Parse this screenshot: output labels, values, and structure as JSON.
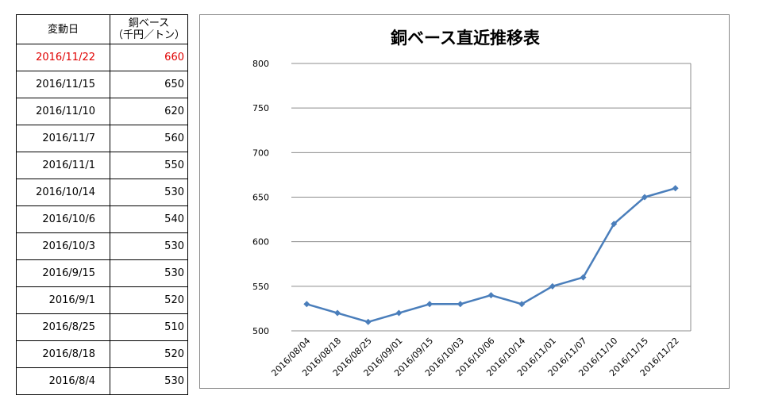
{
  "table": {
    "header_date": "変動日",
    "header_price_line1": "銅ベース",
    "header_price_line2": "（千円／トン）",
    "rows": [
      {
        "date": "2016/11/22",
        "price": "660",
        "highlight": true
      },
      {
        "date": "2016/11/15",
        "price": "650"
      },
      {
        "date": "2016/11/10",
        "price": "620"
      },
      {
        "date": "2016/11/7",
        "price": "560"
      },
      {
        "date": "2016/11/1",
        "price": "550"
      },
      {
        "date": "2016/10/14",
        "price": "530"
      },
      {
        "date": "2016/10/6",
        "price": "540"
      },
      {
        "date": "2016/10/3",
        "price": "530"
      },
      {
        "date": "2016/9/15",
        "price": "530"
      },
      {
        "date": "2016/9/1",
        "price": "520"
      },
      {
        "date": "2016/8/25",
        "price": "510"
      },
      {
        "date": "2016/8/18",
        "price": "520"
      },
      {
        "date": "2016/8/4",
        "price": "530"
      }
    ],
    "highlight_color": "#e00000"
  },
  "chart_data": {
    "type": "line",
    "title": "銅ベース直近推移表",
    "categories": [
      "2016/08/04",
      "2016/08/18",
      "2016/08/25",
      "2016/09/01",
      "2016/09/15",
      "2016/10/03",
      "2016/10/06",
      "2016/10/14",
      "2016/11/01",
      "2016/11/07",
      "2016/11/10",
      "2016/11/15",
      "2016/11/22"
    ],
    "series": [
      {
        "values": [
          530,
          520,
          510,
          520,
          530,
          530,
          540,
          530,
          550,
          560,
          620,
          650,
          660
        ],
        "color": "#4a7ebb"
      }
    ],
    "ylim": [
      500,
      800
    ],
    "yticks": [
      500,
      550,
      600,
      650,
      700,
      750,
      800
    ],
    "grid": true,
    "legend": "none",
    "marker": "diamond"
  }
}
